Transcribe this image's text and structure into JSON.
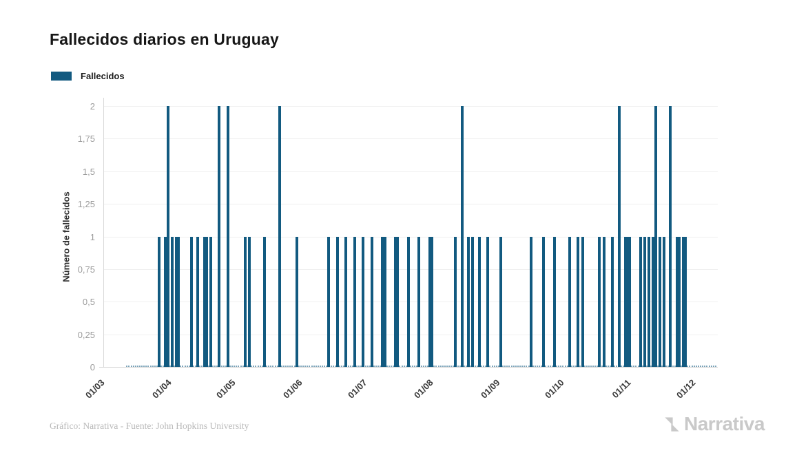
{
  "page": {
    "title": "Fallecidos diarios en Uruguay"
  },
  "legend": {
    "label": "Fallecidos",
    "color": "#125a80"
  },
  "footer": {
    "credit": "Gráfico: Narrativa - Fuente: John Hopkins University",
    "brand": "Narrativa"
  },
  "chart_data": {
    "type": "bar",
    "title": "Fallecidos diarios en Uruguay",
    "xlabel": "",
    "ylabel": "Número de fallecidos",
    "ylim": [
      0,
      2
    ],
    "grid": "horizontal",
    "legend_position": "top-left",
    "series_name": "Fallecidos",
    "bar_color": "#125a80",
    "y_ticks": [
      {
        "value": 0,
        "label": "0"
      },
      {
        "value": 0.25,
        "label": "0,25"
      },
      {
        "value": 0.5,
        "label": "0,5"
      },
      {
        "value": 0.75,
        "label": "0,75"
      },
      {
        "value": 1,
        "label": "1"
      },
      {
        "value": 1.25,
        "label": "1,25"
      },
      {
        "value": 1.5,
        "label": "1,5"
      },
      {
        "value": 1.75,
        "label": "1,75"
      },
      {
        "value": 2,
        "label": "2"
      }
    ],
    "x_ticks": [
      {
        "date": "2020-03-01",
        "label": "01/03"
      },
      {
        "date": "2020-04-01",
        "label": "01/04"
      },
      {
        "date": "2020-05-01",
        "label": "01/05"
      },
      {
        "date": "2020-06-01",
        "label": "01/06"
      },
      {
        "date": "2020-07-01",
        "label": "01/07"
      },
      {
        "date": "2020-08-01",
        "label": "01/08"
      },
      {
        "date": "2020-09-01",
        "label": "01/09"
      },
      {
        "date": "2020-10-01",
        "label": "01/10"
      },
      {
        "date": "2020-11-01",
        "label": "01/11"
      },
      {
        "date": "2020-12-01",
        "label": "01/12"
      }
    ],
    "data_start": "2020-03-12",
    "data_end": "2020-12-11",
    "zero_fill_value": 0,
    "points": [
      {
        "date": "2020-03-27",
        "value": 1
      },
      {
        "date": "2020-03-30",
        "value": 1
      },
      {
        "date": "2020-03-31",
        "value": 2
      },
      {
        "date": "2020-04-02",
        "value": 1
      },
      {
        "date": "2020-04-04",
        "value": 1
      },
      {
        "date": "2020-04-05",
        "value": 1
      },
      {
        "date": "2020-04-11",
        "value": 1
      },
      {
        "date": "2020-04-14",
        "value": 1
      },
      {
        "date": "2020-04-17",
        "value": 1
      },
      {
        "date": "2020-04-18",
        "value": 1
      },
      {
        "date": "2020-04-20",
        "value": 1
      },
      {
        "date": "2020-04-24",
        "value": 2
      },
      {
        "date": "2020-04-28",
        "value": 2
      },
      {
        "date": "2020-05-06",
        "value": 1
      },
      {
        "date": "2020-05-08",
        "value": 1
      },
      {
        "date": "2020-05-15",
        "value": 1
      },
      {
        "date": "2020-05-22",
        "value": 2
      },
      {
        "date": "2020-05-30",
        "value": 1
      },
      {
        "date": "2020-06-14",
        "value": 1
      },
      {
        "date": "2020-06-18",
        "value": 1
      },
      {
        "date": "2020-06-22",
        "value": 1
      },
      {
        "date": "2020-06-26",
        "value": 1
      },
      {
        "date": "2020-06-30",
        "value": 1
      },
      {
        "date": "2020-07-04",
        "value": 1
      },
      {
        "date": "2020-07-09",
        "value": 1
      },
      {
        "date": "2020-07-10",
        "value": 1
      },
      {
        "date": "2020-07-15",
        "value": 1
      },
      {
        "date": "2020-07-16",
        "value": 1
      },
      {
        "date": "2020-07-21",
        "value": 1
      },
      {
        "date": "2020-07-26",
        "value": 1
      },
      {
        "date": "2020-07-31",
        "value": 1
      },
      {
        "date": "2020-08-01",
        "value": 1
      },
      {
        "date": "2020-08-12",
        "value": 1
      },
      {
        "date": "2020-08-15",
        "value": 2
      },
      {
        "date": "2020-08-18",
        "value": 1
      },
      {
        "date": "2020-08-20",
        "value": 1
      },
      {
        "date": "2020-08-23",
        "value": 1
      },
      {
        "date": "2020-08-27",
        "value": 1
      },
      {
        "date": "2020-09-02",
        "value": 1
      },
      {
        "date": "2020-09-16",
        "value": 1
      },
      {
        "date": "2020-09-22",
        "value": 1
      },
      {
        "date": "2020-09-27",
        "value": 1
      },
      {
        "date": "2020-10-04",
        "value": 1
      },
      {
        "date": "2020-10-08",
        "value": 1
      },
      {
        "date": "2020-10-10",
        "value": 1
      },
      {
        "date": "2020-10-18",
        "value": 1
      },
      {
        "date": "2020-10-20",
        "value": 1
      },
      {
        "date": "2020-10-24",
        "value": 1
      },
      {
        "date": "2020-10-27",
        "value": 2
      },
      {
        "date": "2020-10-30",
        "value": 1
      },
      {
        "date": "2020-10-31",
        "value": 1
      },
      {
        "date": "2020-11-01",
        "value": 1
      },
      {
        "date": "2020-11-06",
        "value": 1
      },
      {
        "date": "2020-11-08",
        "value": 1
      },
      {
        "date": "2020-11-10",
        "value": 1
      },
      {
        "date": "2020-11-12",
        "value": 1
      },
      {
        "date": "2020-11-13",
        "value": 2
      },
      {
        "date": "2020-11-15",
        "value": 1
      },
      {
        "date": "2020-11-17",
        "value": 1
      },
      {
        "date": "2020-11-20",
        "value": 2
      },
      {
        "date": "2020-11-23",
        "value": 1
      },
      {
        "date": "2020-11-24",
        "value": 1
      },
      {
        "date": "2020-11-26",
        "value": 1
      },
      {
        "date": "2020-11-27",
        "value": 1
      }
    ]
  }
}
